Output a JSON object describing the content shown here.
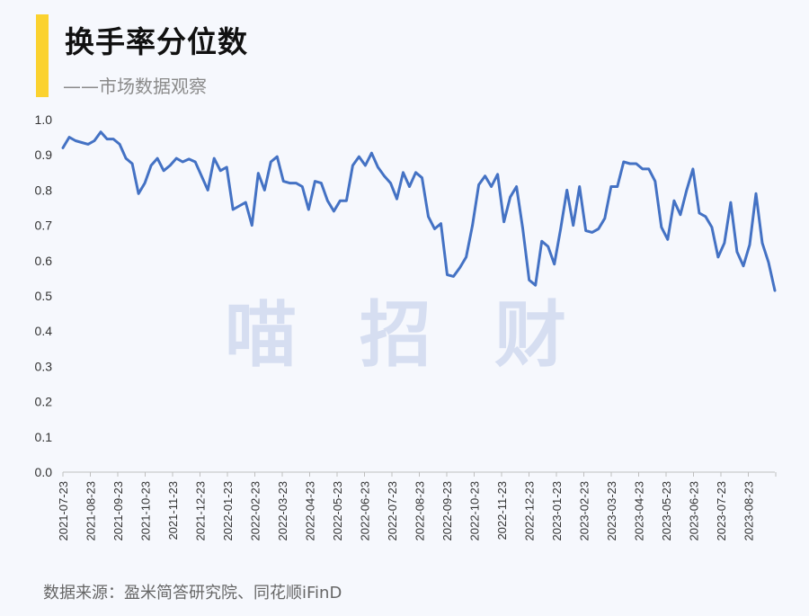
{
  "header": {
    "title": "换手率分位数",
    "subtitle": "——市场数据观察"
  },
  "footer": {
    "source": "数据来源：盈米简答研究院、同花顺iFinD"
  },
  "watermark": [
    "喵",
    "招",
    "财"
  ],
  "colors": {
    "line": "#4472c4",
    "accent_bar": "#fbd22f",
    "watermark": "#c9d4ec"
  },
  "chart_data": {
    "type": "line",
    "title": "换手率分位数",
    "xlabel": "",
    "ylabel": "",
    "ylim": [
      0,
      1.0
    ],
    "y_ticks": [
      "0.0",
      "0.1",
      "0.2",
      "0.3",
      "0.4",
      "0.5",
      "0.6",
      "0.7",
      "0.8",
      "0.9",
      "1.0"
    ],
    "x_tick_labels": [
      "2021-07-23",
      "2021-08-23",
      "2021-09-23",
      "2021-10-23",
      "2021-11-23",
      "2021-12-23",
      "2022-01-23",
      "2022-02-23",
      "2022-03-23",
      "2022-04-23",
      "2022-05-23",
      "2022-06-23",
      "2022-07-23",
      "2022-08-23",
      "2022-09-23",
      "2022-10-23",
      "2022-11-23",
      "2022-12-23",
      "2023-01-23",
      "2023-02-23",
      "2023-03-23",
      "2023-04-23",
      "2023-05-23",
      "2023-06-23",
      "2023-07-23",
      "2023-08-23"
    ],
    "grid": false,
    "series": [
      {
        "values": [
          0.92,
          0.95,
          0.94,
          0.935,
          0.93,
          0.94,
          0.965,
          0.945,
          0.945,
          0.93,
          0.89,
          0.875,
          0.79,
          0.82,
          0.87,
          0.89,
          0.855,
          0.87,
          0.89,
          0.88,
          0.888,
          0.88,
          0.84,
          0.8,
          0.89,
          0.855,
          0.865,
          0.745,
          0.755,
          0.765,
          0.7,
          0.848,
          0.8,
          0.88,
          0.895,
          0.825,
          0.82,
          0.82,
          0.81,
          0.745,
          0.825,
          0.82,
          0.77,
          0.74,
          0.77,
          0.77,
          0.87,
          0.895,
          0.87,
          0.905,
          0.865,
          0.84,
          0.82,
          0.775,
          0.85,
          0.81,
          0.85,
          0.835,
          0.725,
          0.69,
          0.705,
          0.56,
          0.555,
          0.58,
          0.61,
          0.7,
          0.815,
          0.84,
          0.81,
          0.845,
          0.71,
          0.78,
          0.81,
          0.69,
          0.545,
          0.53,
          0.655,
          0.64,
          0.59,
          0.69,
          0.8,
          0.7,
          0.81,
          0.685,
          0.68,
          0.69,
          0.72,
          0.81,
          0.81,
          0.88,
          0.875,
          0.875,
          0.86,
          0.86,
          0.825,
          0.695,
          0.66,
          0.77,
          0.73,
          0.8,
          0.86,
          0.735,
          0.725,
          0.695,
          0.61,
          0.65,
          0.765,
          0.625,
          0.585,
          0.645,
          0.79,
          0.65,
          0.595,
          0.515
        ]
      }
    ]
  }
}
